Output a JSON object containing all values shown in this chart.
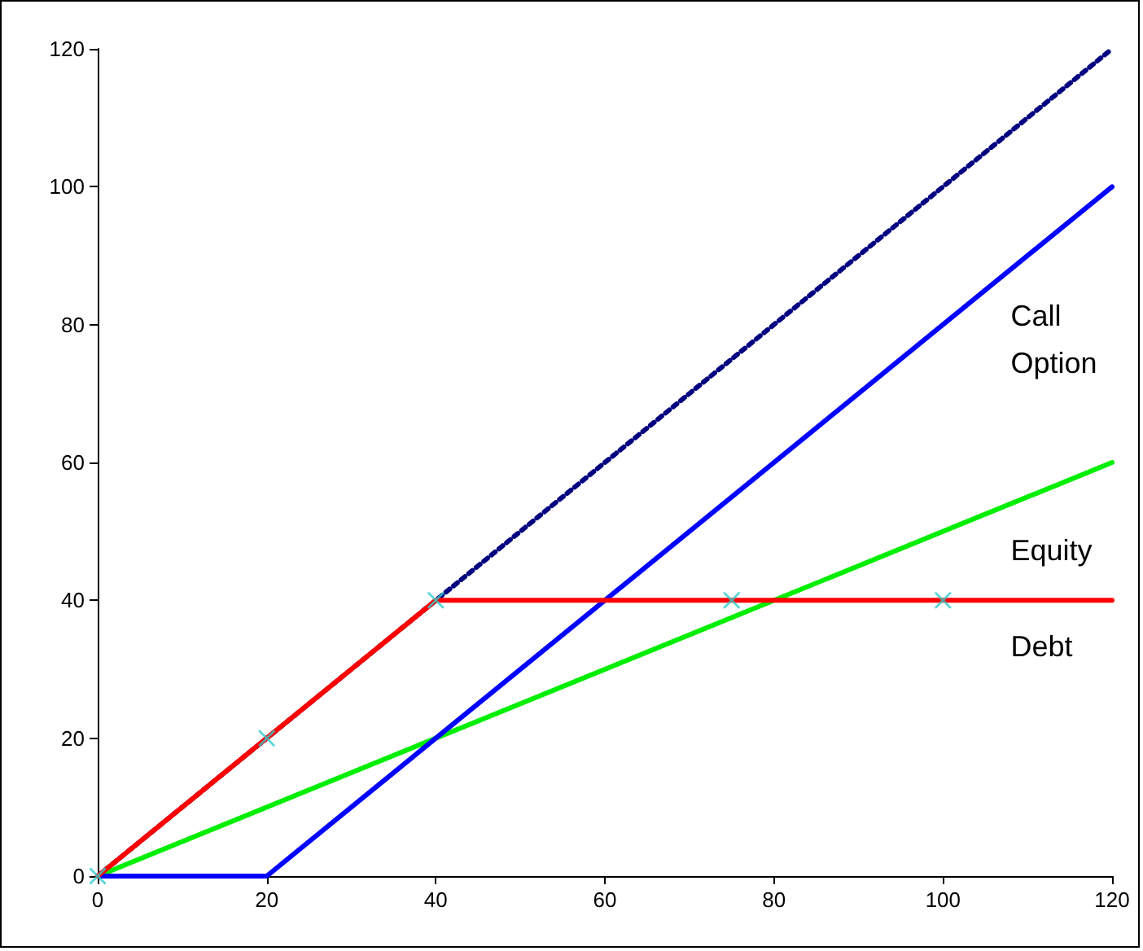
{
  "chart_data": {
    "type": "line",
    "xlim": [
      0,
      120
    ],
    "xticks": [
      0,
      20,
      40,
      60,
      80,
      100,
      120
    ],
    "ylim": [
      0,
      120
    ],
    "yticks": [
      0,
      20,
      40,
      60,
      80,
      100,
      120
    ],
    "grid": false,
    "series": [
      {
        "color": "#000080",
        "x": [
          0,
          120
        ],
        "values": [
          0,
          120
        ],
        "line_style": "dotted",
        "marker": "none"
      },
      {
        "name": "Equity",
        "color": "#00ee00",
        "x": [
          0,
          120
        ],
        "values": [
          0,
          60
        ],
        "line_style": "solid",
        "marker": "none"
      },
      {
        "name": "Call\nOption",
        "color": "#0000ff",
        "x": [
          0,
          20,
          120
        ],
        "values": [
          0,
          0,
          100
        ],
        "line_style": "solid",
        "marker": "none"
      },
      {
        "name": "Debt",
        "color": "#ff0000",
        "x": [
          0,
          40,
          120
        ],
        "values": [
          0,
          40,
          40
        ],
        "line_style": "solid",
        "marker": "none"
      },
      {
        "type": "scatter",
        "color": "#33cccc",
        "x": [
          0,
          20,
          40,
          75,
          100
        ],
        "values": [
          0,
          20,
          40,
          40,
          40
        ],
        "marker": "cross"
      }
    ]
  }
}
